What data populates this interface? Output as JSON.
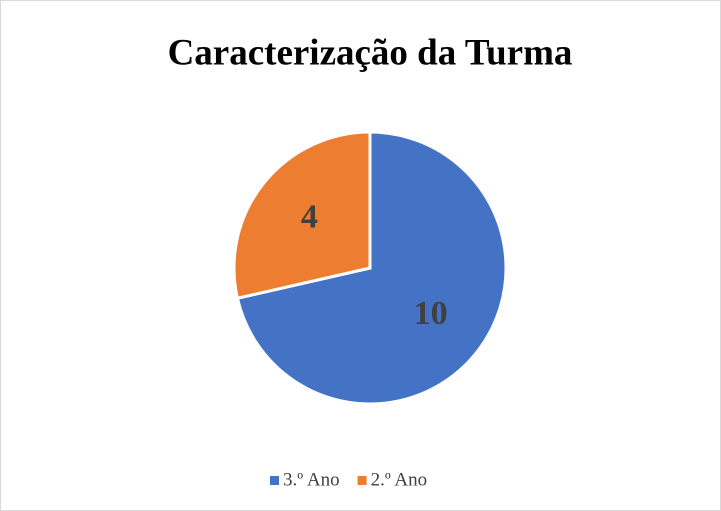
{
  "chart_data": {
    "type": "pie",
    "title": "Caracterização da Turma",
    "categories": [
      "3.º Ano",
      "2.º Ano"
    ],
    "values": [
      10,
      4
    ],
    "colors": [
      "#4472c4",
      "#ed7d31"
    ],
    "legend": "bottom"
  }
}
